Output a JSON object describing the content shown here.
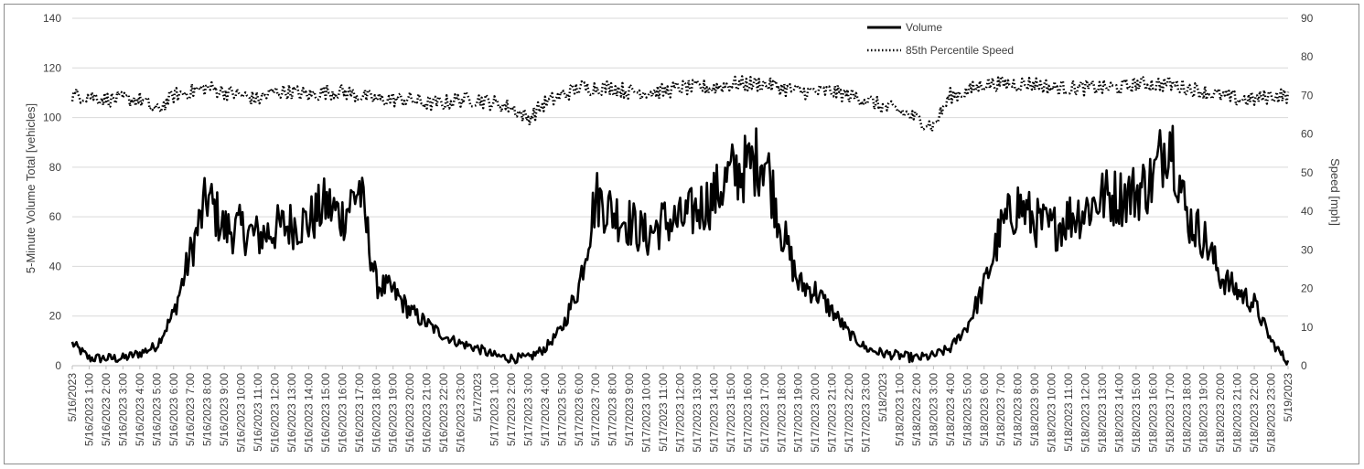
{
  "chart_data": {
    "type": "line",
    "title": "",
    "ylabel": "5-Minute Volume Total [vehicles]",
    "y2label": "Speed [mph]",
    "ylim": [
      0,
      140
    ],
    "y2lim": [
      0,
      90
    ],
    "yticks": [
      "0",
      "20",
      "40",
      "60",
      "80",
      "100",
      "120",
      "140"
    ],
    "y2ticks": [
      "0",
      "10",
      "20",
      "30",
      "40",
      "50",
      "60",
      "70",
      "80",
      "90"
    ],
    "grid": true,
    "legend_position": "top-right",
    "x_tick_labels": [
      "5/16/2023",
      "5/16/2023 1:00",
      "5/16/2023 2:00",
      "5/16/2023 3:00",
      "5/16/2023 4:00",
      "5/16/2023 5:00",
      "5/16/2023 6:00",
      "5/16/2023 7:00",
      "5/16/2023 8:00",
      "5/16/2023 9:00",
      "5/16/2023 10:00",
      "5/16/2023 11:00",
      "5/16/2023 12:00",
      "5/16/2023 13:00",
      "5/16/2023 14:00",
      "5/16/2023 15:00",
      "5/16/2023 16:00",
      "5/16/2023 17:00",
      "5/16/2023 18:00",
      "5/16/2023 19:00",
      "5/16/2023 20:00",
      "5/16/2023 21:00",
      "5/16/2023 22:00",
      "5/16/2023 23:00",
      "5/17/2023",
      "5/17/2023 1:00",
      "5/17/2023 2:00",
      "5/17/2023 3:00",
      "5/17/2023 4:00",
      "5/17/2023 5:00",
      "5/17/2023 6:00",
      "5/17/2023 7:00",
      "5/17/2023 8:00",
      "5/17/2023 9:00",
      "5/17/2023 10:00",
      "5/17/2023 11:00",
      "5/17/2023 12:00",
      "5/17/2023 13:00",
      "5/17/2023 14:00",
      "5/17/2023 15:00",
      "5/17/2023 16:00",
      "5/17/2023 17:00",
      "5/17/2023 18:00",
      "5/17/2023 19:00",
      "5/17/2023 20:00",
      "5/17/2023 21:00",
      "5/17/2023 22:00",
      "5/17/2023 23:00",
      "5/18/2023",
      "5/18/2023 1:00",
      "5/18/2023 2:00",
      "5/18/2023 3:00",
      "5/18/2023 4:00",
      "5/18/2023 5:00",
      "5/18/2023 6:00",
      "5/18/2023 7:00",
      "5/18/2023 8:00",
      "5/18/2023 9:00",
      "5/18/2023 10:00",
      "5/18/2023 11:00",
      "5/18/2023 12:00",
      "5/18/2023 13:00",
      "5/18/2023 14:00",
      "5/18/2023 15:00",
      "5/18/2023 16:00",
      "5/18/2023 17:00",
      "5/18/2023 18:00",
      "5/18/2023 19:00",
      "5/18/2023 20:00",
      "5/18/2023 21:00",
      "5/18/2023 22:00",
      "5/18/2023 23:00",
      "5/19/2023"
    ],
    "hours": [
      0,
      1,
      2,
      3,
      4,
      5,
      6,
      7,
      8,
      9,
      10,
      11,
      12,
      13,
      14,
      15,
      16,
      17,
      18,
      19,
      20,
      21,
      22,
      23,
      24,
      25,
      26,
      27,
      28,
      29,
      30,
      31,
      32,
      33,
      34,
      35,
      36,
      37,
      38,
      39,
      40,
      41,
      42,
      43,
      44,
      45,
      46,
      47,
      48,
      49,
      50,
      51,
      52,
      53,
      54,
      55,
      56,
      57,
      58,
      59,
      60,
      61,
      62,
      63,
      64,
      65,
      66,
      67,
      68,
      69,
      70,
      71,
      72
    ],
    "series": [
      {
        "name": "Volume",
        "axis": "left",
        "style": "solid",
        "color": "#000000",
        "values": [
          9,
          3,
          3,
          3,
          5,
          8,
          21,
          45,
          68,
          55,
          55,
          52,
          55,
          57,
          58,
          65,
          60,
          72,
          33,
          30,
          22,
          17,
          12,
          9,
          7,
          4,
          3,
          3,
          7,
          15,
          32,
          68,
          62,
          58,
          52,
          58,
          58,
          63,
          68,
          77,
          80,
          85,
          55,
          33,
          30,
          22,
          13,
          7,
          5,
          4,
          3,
          4,
          7,
          16,
          32,
          55,
          65,
          58,
          55,
          60,
          63,
          68,
          68,
          70,
          75,
          95,
          60,
          52,
          36,
          30,
          25,
          10,
          1
        ]
      },
      {
        "name": "85th Percentile Speed",
        "axis": "right",
        "style": "dotted",
        "color": "#000000",
        "values": [
          70,
          70,
          69,
          69,
          69,
          66,
          70,
          71,
          72,
          71,
          70,
          69,
          71,
          71,
          70,
          71,
          71,
          70,
          69,
          69,
          69,
          68,
          68,
          69,
          69,
          68,
          67,
          64,
          68,
          70,
          72,
          72,
          72,
          71,
          71,
          71,
          72,
          72,
          72,
          73,
          73,
          73,
          72,
          71,
          71,
          71,
          70,
          69,
          67,
          66,
          64,
          62,
          70,
          71,
          73,
          73,
          73,
          73,
          72,
          72,
          72,
          72,
          72,
          73,
          73,
          73,
          72,
          71,
          70,
          69,
          69,
          70,
          70
        ]
      }
    ]
  }
}
